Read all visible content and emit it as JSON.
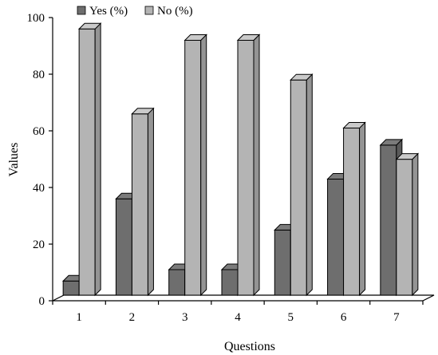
{
  "chart_data": {
    "type": "bar",
    "style": "3d-clustered-column",
    "categories": [
      "1",
      "2",
      "3",
      "4",
      "5",
      "6",
      "7"
    ],
    "series": [
      {
        "name": "Yes (%)",
        "values": [
          5,
          34,
          9,
          9,
          23,
          41,
          53
        ],
        "color": "#6e6e6e"
      },
      {
        "name": "No (%)",
        "values": [
          94,
          64,
          90,
          90,
          76,
          59,
          48
        ],
        "color": "#b4b4b4"
      }
    ],
    "xlabel": "Questions",
    "ylabel": "Values",
    "ylim": [
      0,
      100
    ],
    "yticks": [
      0,
      20,
      40,
      60,
      80,
      100
    ],
    "grid": false,
    "legend_position": "top"
  }
}
